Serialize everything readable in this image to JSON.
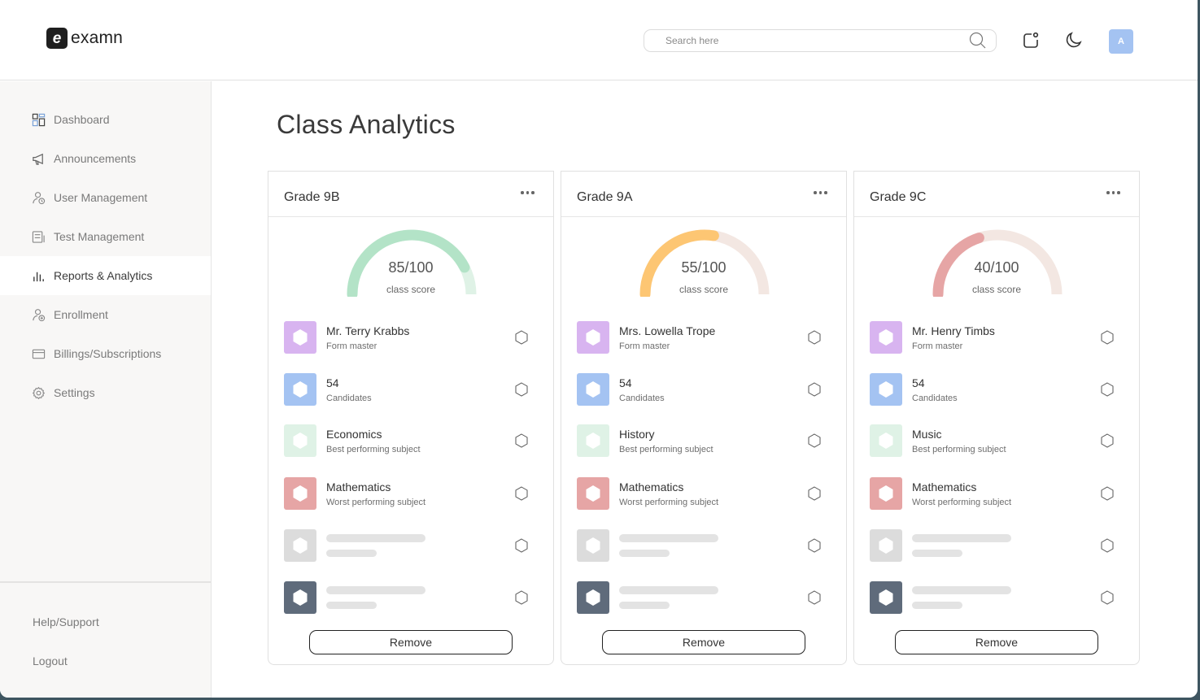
{
  "app": {
    "logo_mark": "e",
    "logo_text": "examn"
  },
  "header": {
    "search": {
      "placeholder": "Search here",
      "value": ""
    },
    "icons": [
      "notification-icon",
      "moon-icon"
    ],
    "avatar_initial": "A",
    "avatar_color": "#a4c3f2"
  },
  "sidebar": {
    "items": [
      {
        "label": "Dashboard",
        "icon": "dashboard-icon",
        "active": false
      },
      {
        "label": "Announcements",
        "icon": "megaphone-icon",
        "active": false
      },
      {
        "label": "User Management",
        "icon": "user-clock-icon",
        "active": false
      },
      {
        "label": "Test Management",
        "icon": "test-list-icon",
        "active": false
      },
      {
        "label": "Reports & Analytics",
        "icon": "bar-chart-icon",
        "active": true
      },
      {
        "label": "Enrollment",
        "icon": "user-add-icon",
        "active": false
      },
      {
        "label": "Billings/Subscriptions",
        "icon": "card-icon",
        "active": false
      },
      {
        "label": "Settings",
        "icon": "gear-icon",
        "active": false
      }
    ],
    "bottom": [
      {
        "label": "Help/Support"
      },
      {
        "label": "Logout"
      }
    ]
  },
  "main": {
    "title": "Class Analytics",
    "cards": [
      {
        "title": "Grade 9B",
        "score": 85,
        "max": 100,
        "score_text": "85/100",
        "score_label": "class score",
        "gauge_color": "#b3e3c7",
        "gauge_track": "#dff2e6",
        "rows": [
          {
            "title": "Mr. Terry Krabbs",
            "sub": "Form master",
            "color": "#d8b4f0"
          },
          {
            "title": "54",
            "sub": "Candidates",
            "color": "#a4c3f2"
          },
          {
            "title": "Economics",
            "sub": "Best performing subject",
            "color": "#dff2e6"
          },
          {
            "title": "Mathematics",
            "sub": "Worst performing subject",
            "color": "#e6a5a5"
          },
          {
            "title": "",
            "sub": "",
            "color": "#dcdcdc",
            "placeholder": true
          },
          {
            "title": "",
            "sub": "",
            "color": "#5f6b7b",
            "placeholder": true
          }
        ],
        "remove_label": "Remove"
      },
      {
        "title": "Grade 9A",
        "score": 55,
        "max": 100,
        "score_text": "55/100",
        "score_label": "class score",
        "gauge_color": "#fdc673",
        "gauge_track": "#f3e7e2",
        "rows": [
          {
            "title": "Mrs. Lowella Trope",
            "sub": "Form master",
            "color": "#d8b4f0"
          },
          {
            "title": "54",
            "sub": "Candidates",
            "color": "#a4c3f2"
          },
          {
            "title": "History",
            "sub": "Best performing subject",
            "color": "#dff2e6"
          },
          {
            "title": "Mathematics",
            "sub": "Worst performing subject",
            "color": "#e6a5a5"
          },
          {
            "title": "",
            "sub": "",
            "color": "#dcdcdc",
            "placeholder": true
          },
          {
            "title": "",
            "sub": "",
            "color": "#5f6b7b",
            "placeholder": true
          }
        ],
        "remove_label": "Remove"
      },
      {
        "title": "Grade 9C",
        "score": 40,
        "max": 100,
        "score_text": "40/100",
        "score_label": "class score",
        "gauge_color": "#e6a5a5",
        "gauge_track": "#f3e7e2",
        "rows": [
          {
            "title": "Mr. Henry Timbs",
            "sub": "Form master",
            "color": "#d8b4f0"
          },
          {
            "title": "54",
            "sub": "Candidates",
            "color": "#a4c3f2"
          },
          {
            "title": "Music",
            "sub": "Best performing subject",
            "color": "#dff2e6"
          },
          {
            "title": "Mathematics",
            "sub": "Worst performing subject",
            "color": "#e6a5a5"
          },
          {
            "title": "",
            "sub": "",
            "color": "#dcdcdc",
            "placeholder": true
          },
          {
            "title": "",
            "sub": "",
            "color": "#5f6b7b",
            "placeholder": true
          }
        ],
        "remove_label": "Remove"
      }
    ]
  }
}
